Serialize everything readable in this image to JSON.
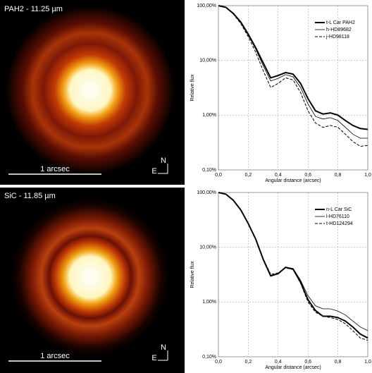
{
  "panels": [
    {
      "title": "PAH2 - 11.25 µm",
      "scale": "1 arcsec",
      "north": "N",
      "east": "E"
    },
    {
      "title": "SiC - 11.85 µm",
      "scale": "1 arcsec",
      "north": "N",
      "east": "E"
    }
  ],
  "chart_data": [
    {
      "type": "line",
      "log_y": true,
      "grid": true,
      "legend": "upper right",
      "xlabel": "Angular distance (arcsec)",
      "ylabel": "Relative flux",
      "x": [
        0,
        0.05,
        0.1,
        0.15,
        0.2,
        0.25,
        0.3,
        0.35,
        0.4,
        0.45,
        0.5,
        0.55,
        0.6,
        0.65,
        0.7,
        0.75,
        0.8,
        0.85,
        0.9,
        0.95,
        1.0
      ],
      "xlim": [
        0,
        1
      ],
      "xticks": [
        {
          "value": 0,
          "label": "0,0"
        },
        {
          "value": 0.2,
          "label": "0,2"
        },
        {
          "value": 0.4,
          "label": "0,4"
        },
        {
          "value": 0.6,
          "label": "0,6"
        },
        {
          "value": 0.8,
          "label": "0,8"
        },
        {
          "value": 1,
          "label": "1,0"
        }
      ],
      "ylim": [
        0.1,
        100
      ],
      "yticks": [
        {
          "value": 100,
          "label": "100,00%"
        },
        {
          "value": 10,
          "label": "10,00%"
        },
        {
          "value": 1,
          "label": "1,00%"
        },
        {
          "value": 0.1,
          "label": "0,10%"
        }
      ],
      "series": [
        {
          "name": "t-L Car PAH2",
          "color": "#000000",
          "width": 2,
          "dash": false,
          "values": [
            100,
            93,
            72,
            50,
            30,
            17,
            9,
            4.8,
            5.3,
            6,
            5.6,
            3.8,
            2,
            1.2,
            1.05,
            1.1,
            1.0,
            0.8,
            0.65,
            0.57,
            0.55
          ]
        },
        {
          "name": "h-HD89682",
          "color": "#000000",
          "width": 0.8,
          "dash": false,
          "values": [
            100,
            93,
            72,
            49,
            29,
            16,
            8,
            4.2,
            4.7,
            5.5,
            5,
            3.2,
            1.6,
            0.95,
            0.85,
            0.9,
            0.8,
            0.6,
            0.45,
            0.38,
            0.38
          ]
        },
        {
          "name": "j-HD98118",
          "color": "#000000",
          "width": 1,
          "dash": true,
          "values": [
            100,
            92,
            70,
            47,
            27,
            14,
            6.5,
            3.2,
            3.8,
            4.8,
            4.4,
            2.6,
            1.2,
            0.72,
            0.6,
            0.65,
            0.6,
            0.45,
            0.33,
            0.27,
            0.28
          ]
        }
      ]
    },
    {
      "type": "line",
      "log_y": true,
      "grid": true,
      "legend": "upper right",
      "xlabel": "Angular distance (arcsec)",
      "ylabel": "Relative flux",
      "x": [
        0,
        0.05,
        0.1,
        0.15,
        0.2,
        0.25,
        0.3,
        0.35,
        0.4,
        0.45,
        0.5,
        0.55,
        0.6,
        0.65,
        0.7,
        0.75,
        0.8,
        0.85,
        0.9,
        0.95,
        1.0
      ],
      "xlim": [
        0,
        1
      ],
      "xticks": [
        {
          "value": 0,
          "label": "0,0"
        },
        {
          "value": 0.2,
          "label": "0,2"
        },
        {
          "value": 0.4,
          "label": "0,4"
        },
        {
          "value": 0.6,
          "label": "0,6"
        },
        {
          "value": 0.8,
          "label": "0,8"
        },
        {
          "value": 1,
          "label": "1,0"
        }
      ],
      "ylim": [
        0.1,
        100
      ],
      "yticks": [
        {
          "value": 100,
          "label": "100,00%"
        },
        {
          "value": 10,
          "label": "10,00%"
        },
        {
          "value": 1,
          "label": "1,00%"
        },
        {
          "value": 0.1,
          "label": "0,10%"
        }
      ],
      "series": [
        {
          "name": "n-L Car SiC",
          "color": "#000000",
          "width": 2,
          "dash": false,
          "values": [
            100,
            93,
            72,
            48,
            27,
            14,
            6,
            3.0,
            3.3,
            4.3,
            4.0,
            2.3,
            1.1,
            0.7,
            0.55,
            0.55,
            0.52,
            0.45,
            0.35,
            0.26,
            0.22
          ]
        },
        {
          "name": "l-HD76110",
          "color": "#000000",
          "width": 0.8,
          "dash": false,
          "values": [
            100,
            93,
            72,
            48,
            27,
            14,
            6,
            3.0,
            3.3,
            4.3,
            4.1,
            2.5,
            1.3,
            0.85,
            0.75,
            0.75,
            0.68,
            0.58,
            0.45,
            0.35,
            0.3
          ]
        },
        {
          "name": "t-HD124294",
          "color": "#000000",
          "width": 1,
          "dash": true,
          "values": [
            100,
            93,
            72,
            48,
            27,
            14,
            6.2,
            3.2,
            3.4,
            4.2,
            3.9,
            2.2,
            1.0,
            0.65,
            0.55,
            0.52,
            0.48,
            0.4,
            0.3,
            0.22,
            0.2
          ]
        }
      ]
    }
  ]
}
